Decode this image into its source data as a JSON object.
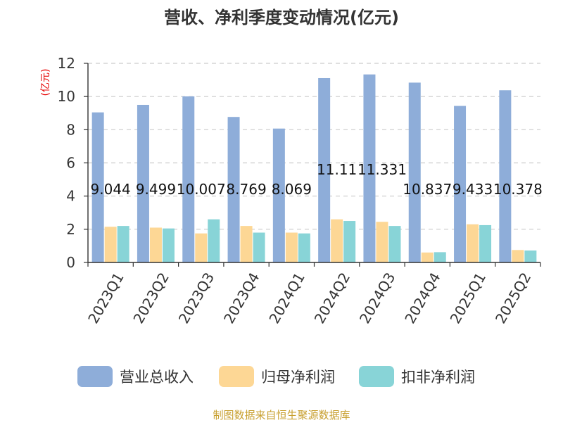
{
  "chart_data": {
    "type": "bar",
    "title": "营收、净利季度变动情况(亿元)",
    "ylabel": "(亿元)",
    "xlabel": "",
    "ylim": [
      0,
      12
    ],
    "yticks": [
      0,
      2,
      4,
      6,
      8,
      10,
      12
    ],
    "grid": true,
    "legend_position": "bottom",
    "categories": [
      "2023Q1",
      "2023Q2",
      "2023Q3",
      "2023Q4",
      "2024Q1",
      "2024Q2",
      "2024Q3",
      "2024Q4",
      "2025Q1",
      "2025Q2"
    ],
    "series": [
      {
        "name": "营业总收入",
        "color": "#8eadd9",
        "values": [
          9.044,
          9.499,
          10.007,
          8.769,
          8.069,
          11.11,
          11.331,
          10.837,
          9.433,
          10.378
        ],
        "labels": [
          "9.044",
          "9.499",
          "10.007",
          "8.769",
          "8.069",
          "11.11",
          "11.331",
          "10.837",
          "9.433",
          "10.378"
        ]
      },
      {
        "name": "归母净利润",
        "color": "#fdd795",
        "values": [
          2.15,
          2.1,
          1.75,
          2.2,
          1.8,
          2.6,
          2.45,
          0.6,
          2.3,
          0.75
        ]
      },
      {
        "name": "扣非净利润",
        "color": "#88d4d7",
        "values": [
          2.2,
          2.05,
          2.6,
          1.8,
          1.75,
          2.5,
          2.2,
          0.62,
          2.25,
          0.72
        ]
      }
    ]
  },
  "footer": {
    "source": "制图数据来自恒生聚源数据库"
  }
}
